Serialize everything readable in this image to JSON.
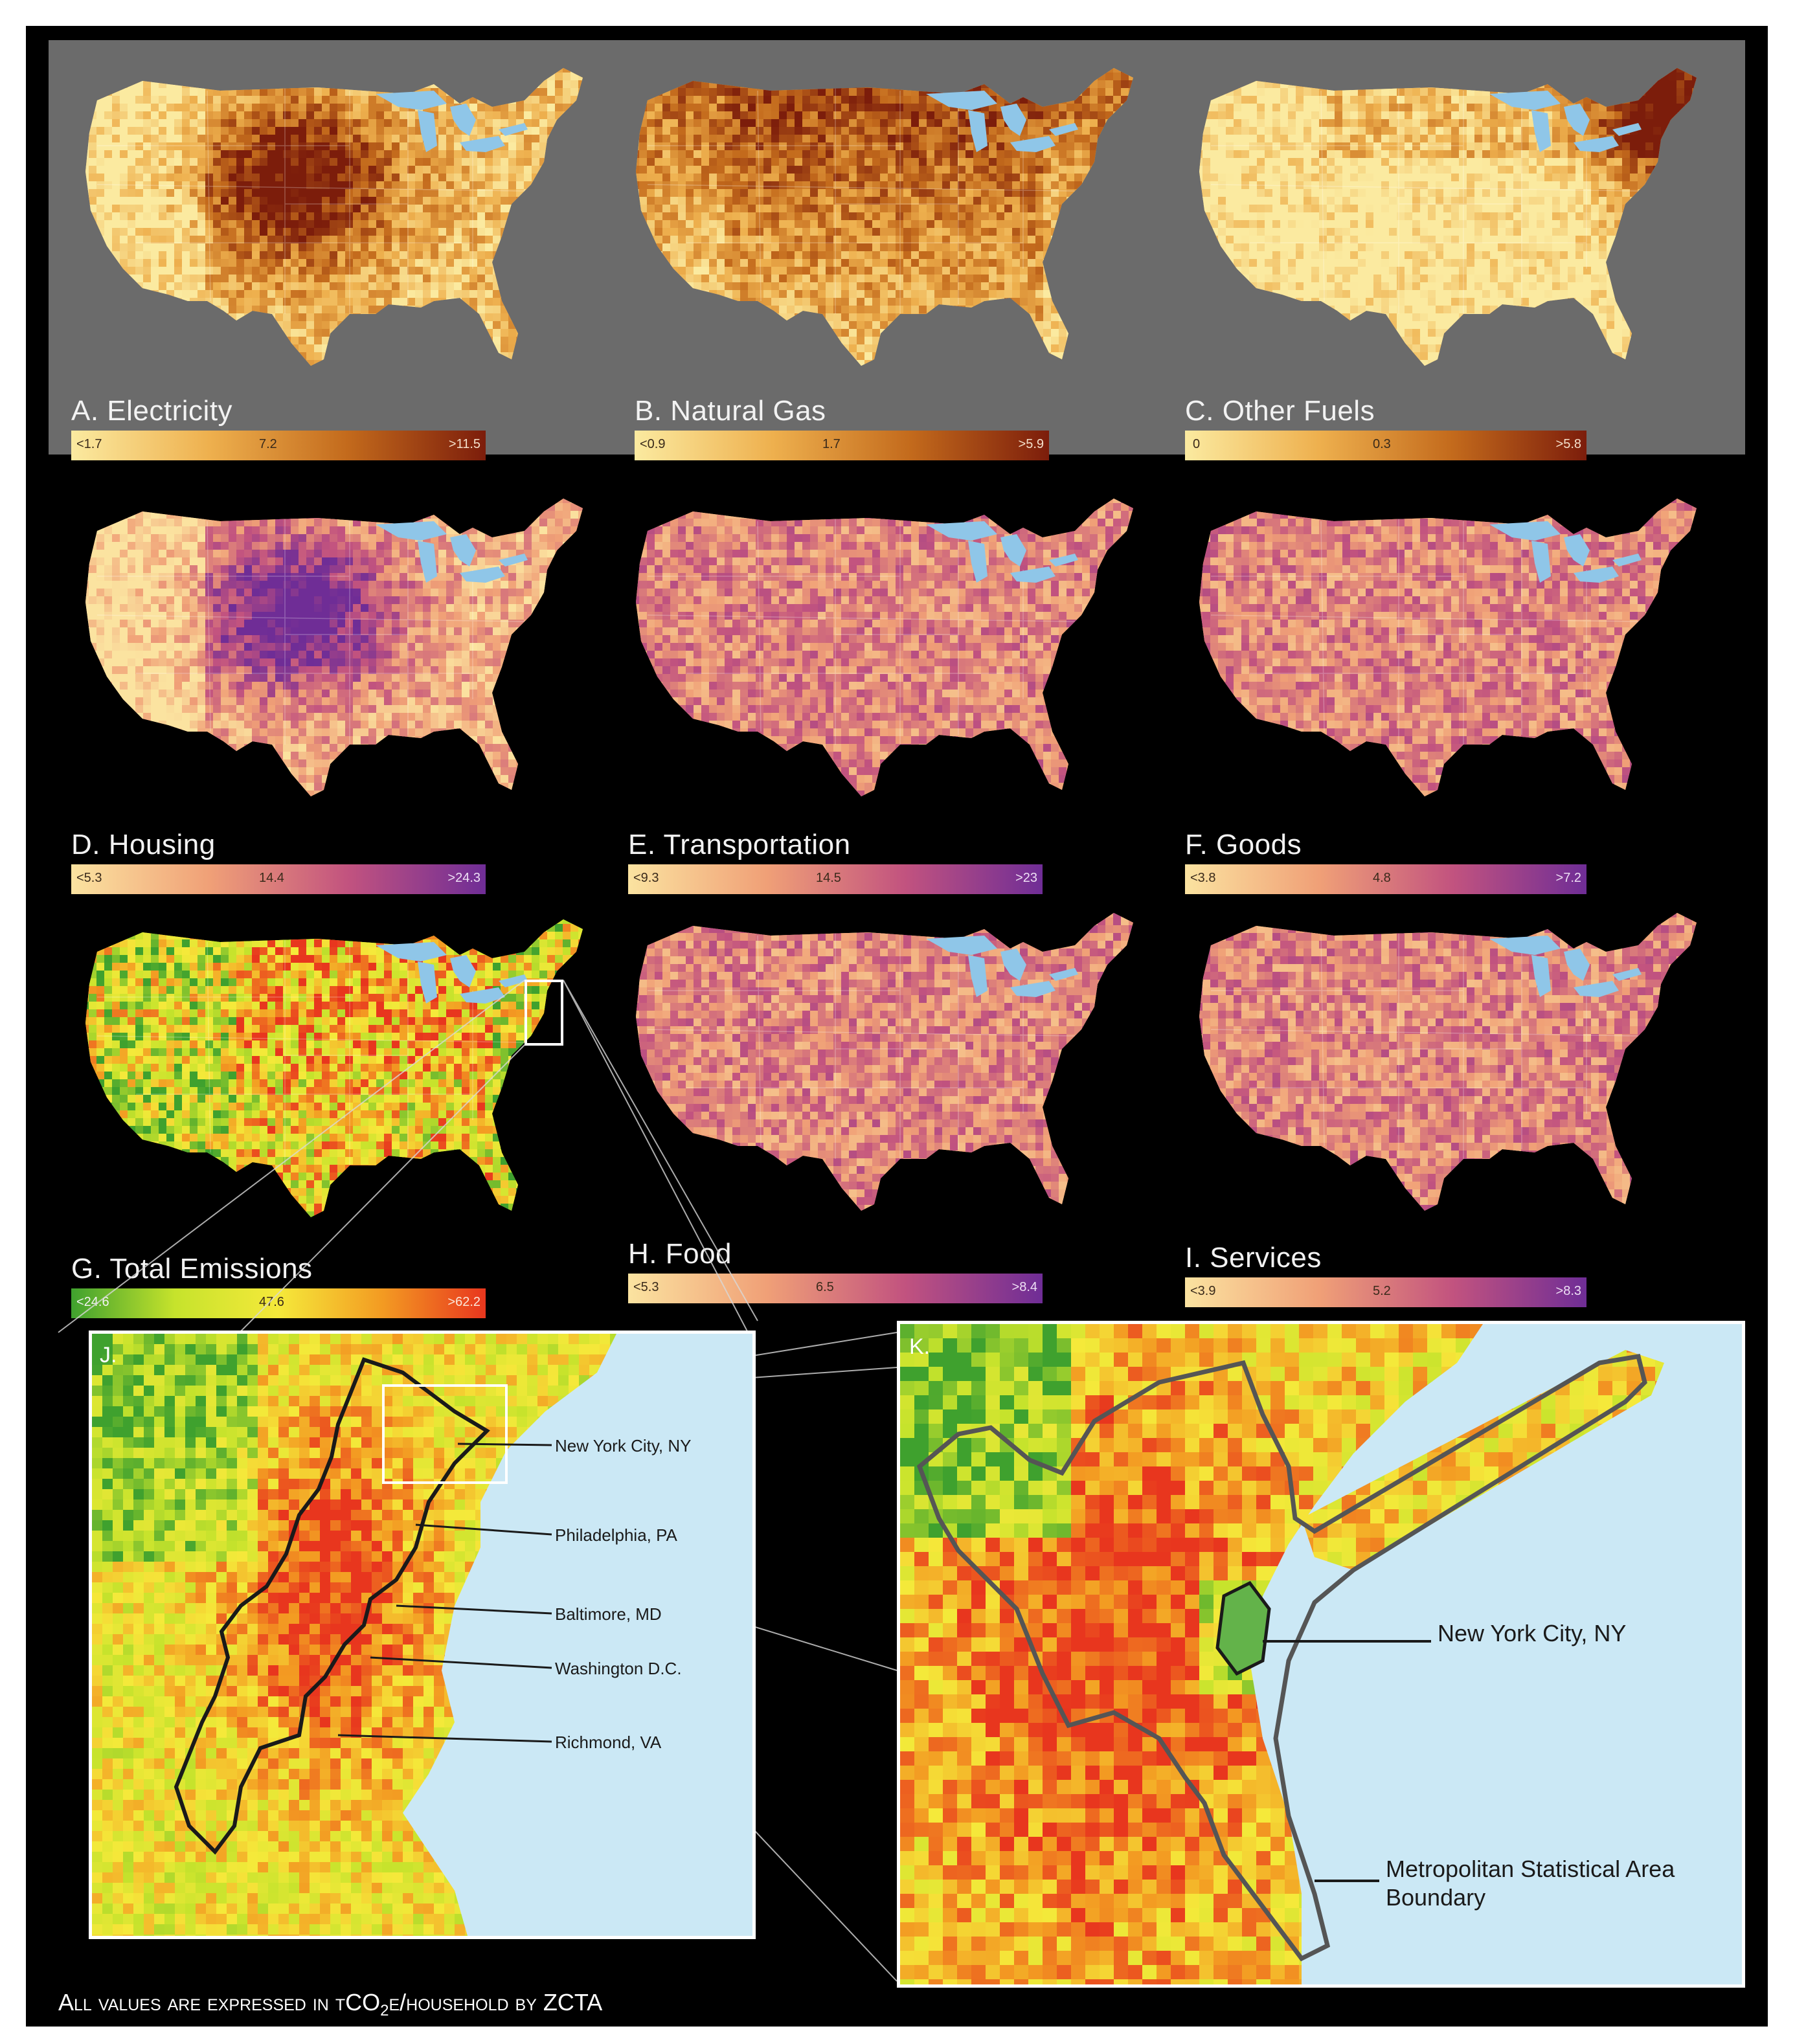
{
  "colors": {
    "fuel_ramp": [
      "#fbeaa0",
      "#eeb04e",
      "#c36a1c",
      "#7c1d0b"
    ],
    "purple_ramp": [
      "#fbe3a0",
      "#f0a077",
      "#c2537f",
      "#6f2d96"
    ],
    "total_ramp": [
      "#3fa12e",
      "#c6e32c",
      "#f5e93a",
      "#f39b22",
      "#e8361e"
    ],
    "lake": "#8fc6e8",
    "water": "#cbe8f5",
    "boundary": "#1a1a1a"
  },
  "panels": [
    {
      "id": "A",
      "title": "A. Electricity",
      "ramp": "fuel_ramp",
      "legend": [
        "<1.7",
        "7.2",
        ">11.5"
      ],
      "hotspot": "central"
    },
    {
      "id": "B",
      "title": "B. Natural Gas",
      "ramp": "fuel_ramp",
      "legend": [
        "<0.9",
        "1.7",
        ">5.9"
      ],
      "hotspot": "north"
    },
    {
      "id": "C",
      "title": "C. Other Fuels",
      "ramp": "fuel_ramp",
      "legend": [
        "0",
        "0.3",
        ">5.8"
      ],
      "hotspot": "northeast"
    },
    {
      "id": "D",
      "title": "D. Housing",
      "ramp": "purple_ramp",
      "legend": [
        "<5.3",
        "14.4",
        ">24.3"
      ],
      "hotspot": "central"
    },
    {
      "id": "E",
      "title": "E. Transportation",
      "ramp": "purple_ramp",
      "legend": [
        "<9.3",
        "14.5",
        ">23"
      ],
      "hotspot": "uniform"
    },
    {
      "id": "F",
      "title": "F. Goods",
      "ramp": "purple_ramp",
      "legend": [
        "<3.8",
        "4.8",
        ">7.2"
      ],
      "hotspot": "uniform"
    },
    {
      "id": "G",
      "title": "G. Total Emissions",
      "ramp": "total_ramp",
      "legend": [
        "<24.6",
        "47.6",
        ">62.2"
      ],
      "hotspot": "total"
    },
    {
      "id": "H",
      "title": "H. Food",
      "ramp": "purple_ramp",
      "legend": [
        "<5.3",
        "6.5",
        ">8.4"
      ],
      "hotspot": "uniform"
    },
    {
      "id": "I",
      "title": "I. Services",
      "ramp": "purple_ramp",
      "legend": [
        "<3.9",
        "5.2",
        ">8.3"
      ],
      "hotspot": "uniform"
    }
  ],
  "inset_j": {
    "letter": "J.",
    "cities": [
      "New York City, NY",
      "Philadelphia, PA",
      "Baltimore, MD",
      "Washington D.C.",
      "Richmond, VA"
    ]
  },
  "inset_k": {
    "letter": "K.",
    "city": "New York City, NY",
    "boundary_label": "Metropolitan Statistical Area Boundary"
  },
  "footer": {
    "text_a": "All values are expressed in tCO",
    "subscript": "2",
    "text_b": "e/household by ZCTA"
  }
}
